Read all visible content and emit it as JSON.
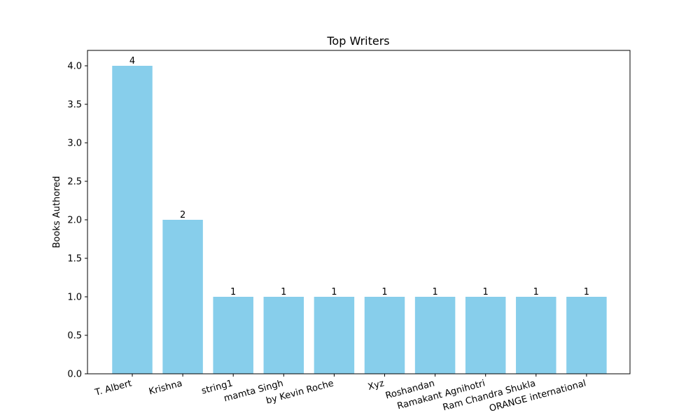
{
  "chart_data": {
    "type": "bar",
    "title": "Top Writers",
    "xlabel": "",
    "ylabel": "Books Authored",
    "categories": [
      "T. Albert",
      "Krishna",
      "string1",
      "mamta Singh",
      "by Kevin Roche",
      "Xyz",
      "Roshandan",
      "Ramakant Agnihotri",
      "Ram Chandra Shukla",
      "ORANGE international"
    ],
    "values": [
      4,
      2,
      1,
      1,
      1,
      1,
      1,
      1,
      1,
      1
    ],
    "data_labels": [
      "4",
      "2",
      "1",
      "1",
      "1",
      "1",
      "1",
      "1",
      "1",
      "1"
    ],
    "ylim": [
      0,
      4.2
    ],
    "yticks": [
      0.0,
      0.5,
      1.0,
      1.5,
      2.0,
      2.5,
      3.0,
      3.5,
      4.0
    ],
    "ytick_labels": [
      "0.0",
      "0.5",
      "1.0",
      "1.5",
      "2.0",
      "2.5",
      "3.0",
      "3.5",
      "4.0"
    ],
    "bar_color": "#87CEEB",
    "grid": false
  }
}
